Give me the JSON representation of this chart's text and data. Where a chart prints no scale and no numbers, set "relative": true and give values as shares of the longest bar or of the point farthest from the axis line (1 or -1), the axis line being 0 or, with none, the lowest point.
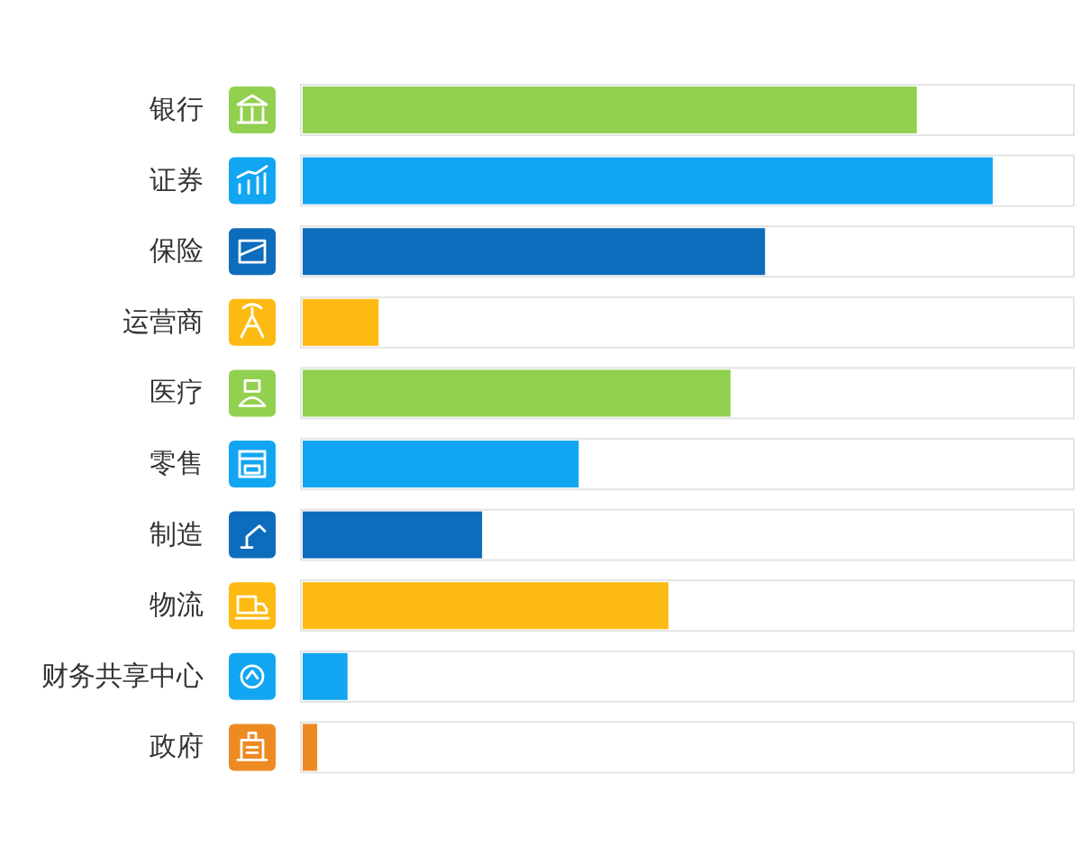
{
  "chart_data": {
    "type": "bar",
    "orientation": "horizontal",
    "relative": true,
    "categories": [
      "银行",
      "证券",
      "保险",
      "运营商",
      "医疗",
      "零售",
      "制造",
      "物流",
      "财务共享中心",
      "政府"
    ],
    "values": [
      0.89,
      1,
      0.67,
      0.11,
      0.62,
      0.4,
      0.26,
      0.53,
      0.065,
      0.021
    ],
    "colors": [
      "#92d050",
      "#12a6f2",
      "#0d6cbc",
      "#fdba12",
      "#92d050",
      "#12a6f2",
      "#0d6cbc",
      "#fdba12",
      "#12a6f2",
      "#ee8a22"
    ]
  }
}
